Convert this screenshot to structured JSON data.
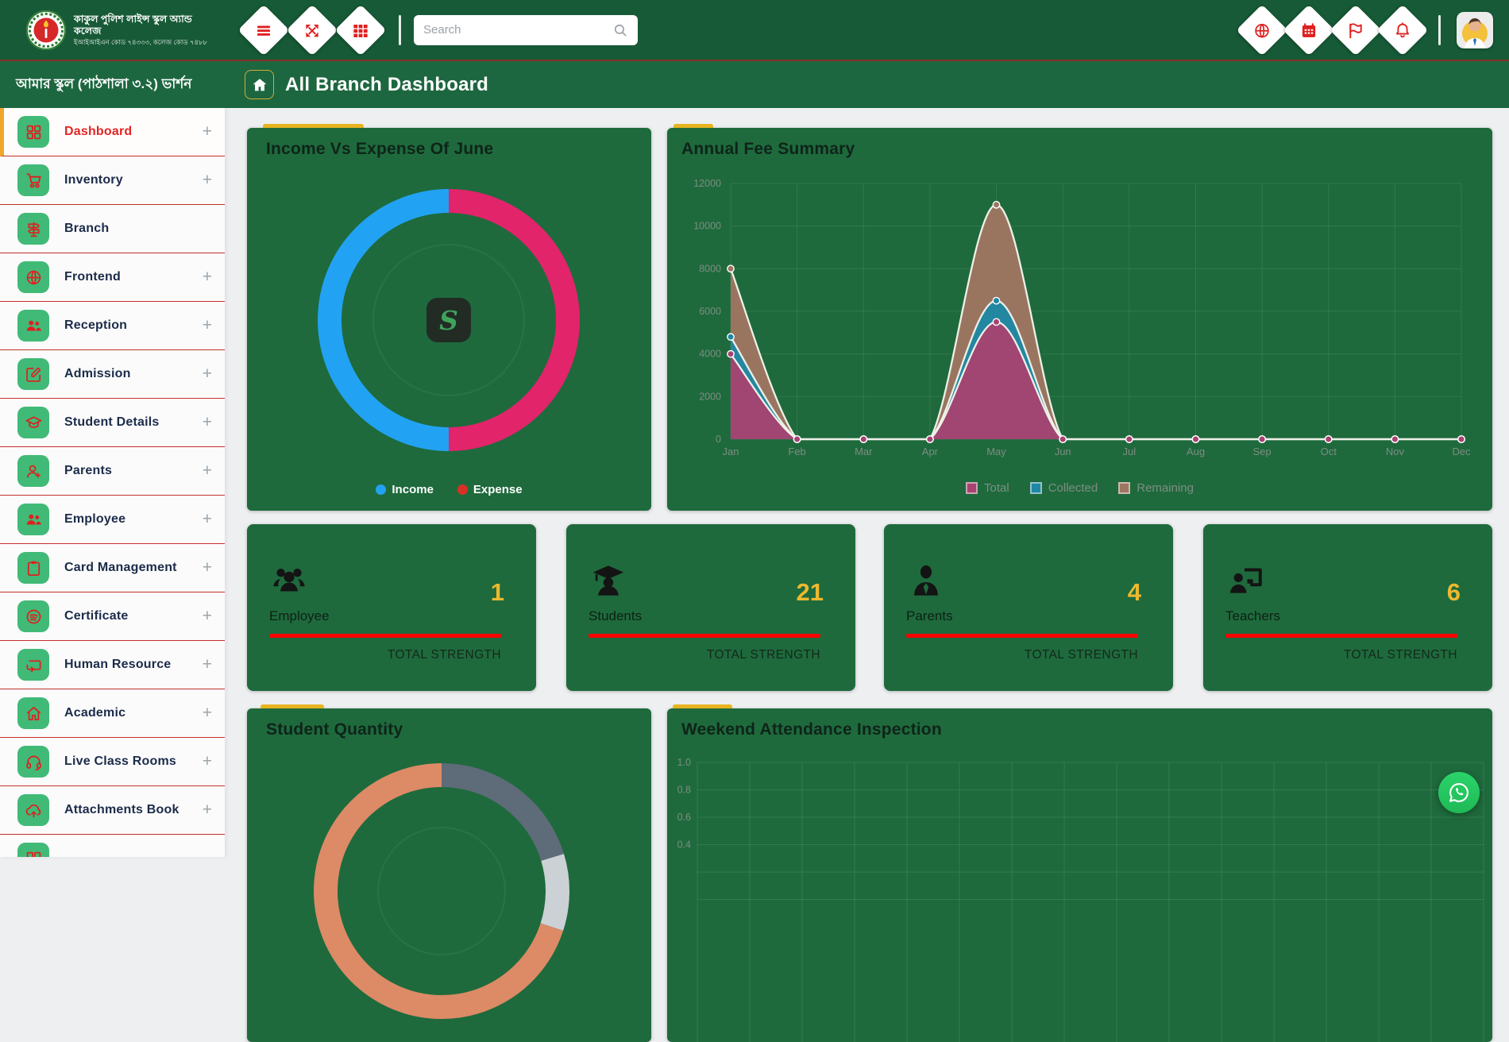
{
  "header": {
    "logo": {
      "line1": "কাকুল পুলিশ লাইন্স স্কুল অ্যান্ড কলেজ",
      "line2": "ইআইআইএন কোড ৭৪৩৩৩, কলেজ কোড ৭৪৮৮"
    },
    "nav_icons": [
      {
        "name": "menu-icon",
        "icon_ref": "#i-menu"
      },
      {
        "name": "expand-arrows-icon",
        "icon_ref": "#i-expand"
      },
      {
        "name": "apps-grid-icon",
        "icon_ref": "#i-grid"
      }
    ],
    "search": {
      "placeholder": "Search",
      "value": "",
      "icon": "search-icon"
    },
    "right_icons": [
      {
        "name": "globe-icon",
        "icon_ref": "#i-globe"
      },
      {
        "name": "calendar-icon",
        "icon_ref": "#i-calendar"
      },
      {
        "name": "flag-icon",
        "icon_ref": "#i-flag"
      },
      {
        "name": "bell-icon",
        "icon_ref": "#i-bell"
      }
    ]
  },
  "breadcrumb": {
    "app_title": "আমার স্কুল (পাঠশালা ৩.২) ভার্শন",
    "page_title": "All Branch Dashboard",
    "home_icon_ref": "#i-home"
  },
  "sidebar": {
    "items": [
      {
        "label": "Dashboard",
        "icon": "dashboard-grid-icon",
        "icon_ref": "#i-dash",
        "expander": "+",
        "active": true
      },
      {
        "label": "Inventory",
        "icon": "trolley-icon",
        "icon_ref": "#i-trolley",
        "expander": "+"
      },
      {
        "label": "Branch",
        "icon": "signpost-icon",
        "icon_ref": "#i-signpost",
        "expander": ""
      },
      {
        "label": "Frontend",
        "icon": "globe-icon",
        "icon_ref": "#i-globe",
        "expander": "+"
      },
      {
        "label": "Reception",
        "icon": "people-group-icon",
        "icon_ref": "#i-users",
        "expander": "+"
      },
      {
        "label": "Admission",
        "icon": "edit-square-icon",
        "icon_ref": "#i-edit",
        "expander": "+"
      },
      {
        "label": "Student Details",
        "icon": "graduation-cap-icon",
        "icon_ref": "#i-gradcap",
        "expander": "+"
      },
      {
        "label": "Parents",
        "icon": "user-plus-icon",
        "icon_ref": "#i-useradd",
        "expander": "+"
      },
      {
        "label": "Employee",
        "icon": "people-group-icon",
        "icon_ref": "#i-users",
        "expander": "+"
      },
      {
        "label": "Card Management",
        "icon": "clipboard-icon",
        "icon_ref": "#i-clipboard",
        "expander": "+"
      },
      {
        "label": "Certificate",
        "icon": "disc-waves-icon",
        "icon_ref": "#i-disc",
        "expander": "+"
      },
      {
        "label": "Human Resource",
        "icon": "repeat-loop-icon",
        "icon_ref": "#i-loop",
        "expander": "+"
      },
      {
        "label": "Academic",
        "icon": "home-outline-icon",
        "icon_ref": "#i-home-o",
        "expander": "+"
      },
      {
        "label": "Live Class Rooms",
        "icon": "headset-icon",
        "icon_ref": "#i-headset",
        "expander": "+"
      },
      {
        "label": "Attachments Book",
        "icon": "cloud-upload-icon",
        "icon_ref": "#i-cloudup",
        "expander": "+"
      },
      {
        "label": "",
        "icon": "hidden-partial-icon",
        "icon_ref": "#i-dash",
        "expander": ""
      }
    ]
  },
  "cards": {
    "income_expense": {
      "title": "Income Vs Expense Of June",
      "center_logo_letter": "S",
      "legend": [
        {
          "label": "Income",
          "color": "#22a2f2"
        },
        {
          "label": "Expense",
          "color": "#d93025"
        }
      ]
    },
    "annual_fee": {
      "title": "Annual Fee Summary"
    },
    "student_quantity": {
      "title": "Student Quantity"
    },
    "weekend": {
      "title": "Weekend Attendance Inspection"
    }
  },
  "stats": [
    {
      "label": "Employee",
      "value": "1",
      "footer": "TOTAL STRENGTH",
      "icon": "employees-group-icon",
      "icon_ref": "#i-users-lg"
    },
    {
      "label": "Students",
      "value": "21",
      "footer": "TOTAL STRENGTH",
      "icon": "graduate-student-icon",
      "icon_ref": "#i-student"
    },
    {
      "label": "Parents",
      "value": "4",
      "footer": "TOTAL STRENGTH",
      "icon": "parent-tie-icon",
      "icon_ref": "#i-tie"
    },
    {
      "label": "Teachers",
      "value": "6",
      "footer": "TOTAL STRENGTH",
      "icon": "teacher-board-icon",
      "icon_ref": "#i-teacher"
    }
  ],
  "floating": {
    "whatsapp_icon": "whatsapp-icon"
  },
  "chart_data": [
    {
      "id": "income-expense-donut",
      "type": "pie",
      "title": "Income Vs Expense Of June",
      "direction": "ccw",
      "segments": [
        {
          "label": "Income",
          "value": 50,
          "color": "#22a2f2"
        },
        {
          "label": "Expense",
          "value": 50,
          "color": "#e2246b"
        }
      ]
    },
    {
      "id": "annual-fee",
      "type": "area",
      "title": "Annual Fee Summary",
      "x": [
        "Jan",
        "Feb",
        "Mar",
        "Apr",
        "May",
        "Jun",
        "Jul",
        "Aug",
        "Sep",
        "Oct",
        "Nov",
        "Dec"
      ],
      "ylim": [
        0,
        12000
      ],
      "y_ticks": [
        0,
        2000,
        4000,
        6000,
        8000,
        10000,
        12000
      ],
      "grid": true,
      "legend_position": "bottom",
      "series": [
        {
          "name": "Remaining",
          "color": "#9d7661",
          "values": [
            8000,
            0,
            0,
            0,
            11000,
            0,
            0,
            0,
            0,
            0,
            0,
            0
          ]
        },
        {
          "name": "Collected",
          "color": "#1f87a3",
          "values": [
            4800,
            0,
            0,
            0,
            6500,
            0,
            0,
            0,
            0,
            0,
            0,
            0
          ]
        },
        {
          "name": "Total",
          "color": "#a54371",
          "values": [
            4000,
            0,
            0,
            0,
            5500,
            0,
            0,
            0,
            0,
            0,
            0,
            0
          ]
        }
      ],
      "legend": [
        {
          "label": "Total",
          "color": "#a54371"
        },
        {
          "label": "Collected",
          "color": "#1f87a3"
        },
        {
          "label": "Remaining",
          "color": "#9d7661"
        }
      ]
    },
    {
      "id": "student-quantity-donut",
      "type": "pie",
      "title": "Student Quantity",
      "direction": "cw",
      "segments": [
        {
          "label": "",
          "value": 20.3,
          "color": "#5e6b79"
        },
        {
          "label": "",
          "value": 9.7,
          "color": "#ccd1d6"
        },
        {
          "label": "",
          "value": 70,
          "color": "#dd8a66"
        }
      ]
    },
    {
      "id": "weekend-attendance",
      "type": "line",
      "title": "Weekend Attendance Inspection",
      "y_ticks": [
        "1.0",
        "0.8",
        "0.6",
        "0.4"
      ],
      "grid": true,
      "series": []
    }
  ]
}
